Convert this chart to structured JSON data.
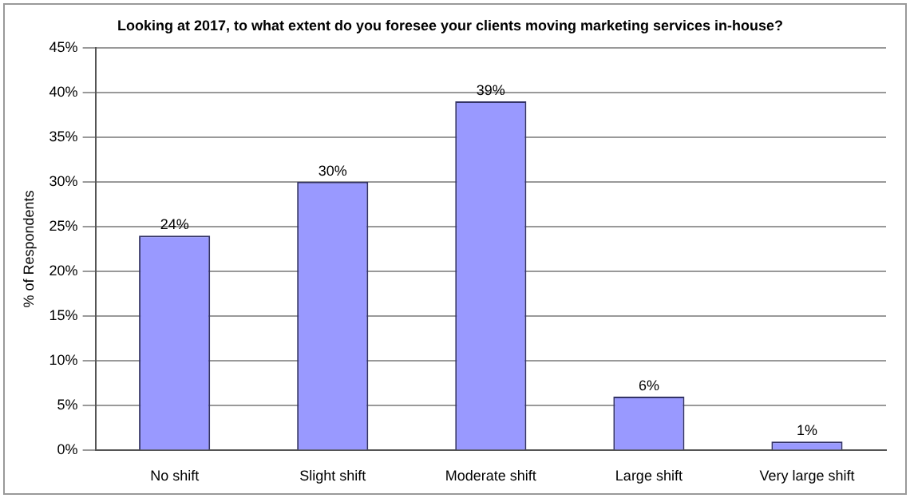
{
  "chart_data": {
    "type": "bar",
    "title": "Looking at 2017, to what extent do you foresee your clients moving marketing services in-house?",
    "ylabel": "% of Respondents",
    "categories": [
      "No shift",
      "Slight shift",
      "Moderate shift",
      "Large shift",
      "Very large shift"
    ],
    "values": [
      24,
      30,
      39,
      6,
      1
    ],
    "value_labels": [
      "24%",
      "30%",
      "39%",
      "6%",
      "1%"
    ],
    "color": "#9999ff",
    "ylim": [
      0,
      45
    ],
    "yticks": [
      {
        "value": 0,
        "label": "0%"
      },
      {
        "value": 5,
        "label": "5%"
      },
      {
        "value": 10,
        "label": "10%"
      },
      {
        "value": 15,
        "label": "15%"
      },
      {
        "value": 20,
        "label": "20%"
      },
      {
        "value": 25,
        "label": "25%"
      },
      {
        "value": 30,
        "label": "30%"
      },
      {
        "value": 35,
        "label": "35%"
      },
      {
        "value": 40,
        "label": "40%"
      },
      {
        "value": 45,
        "label": "45%"
      }
    ],
    "grid": "y",
    "legend": false
  }
}
